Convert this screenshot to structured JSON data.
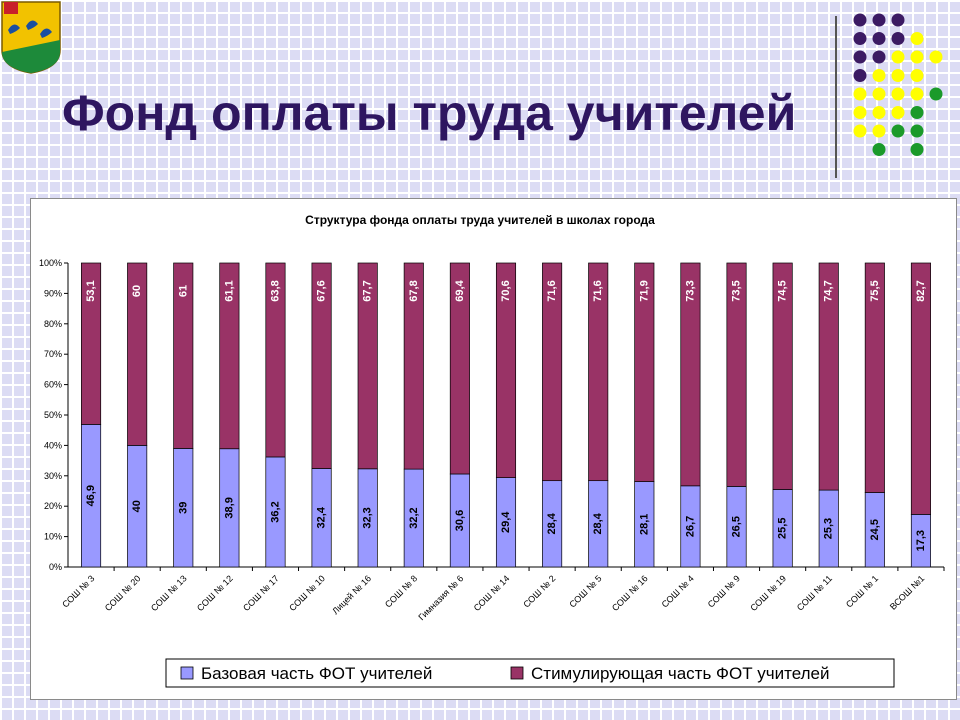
{
  "slide": {
    "title": "Фонд оплаты труда учителей",
    "emblem_icon": "city-coat-of-arms",
    "decor": "dot-grid"
  },
  "colors": {
    "title": "#2e1660",
    "base": "#9999ff",
    "stimulating": "#993366",
    "dot_purple": "#3b1a63",
    "dot_yellow": "#ffff00",
    "dot_green": "#1b9a2a"
  },
  "chart_data": {
    "type": "bar",
    "stacked": "percent",
    "title": "Структура фонда оплаты труда учителей в школах города",
    "categories": [
      "СОШ № 3",
      "СОШ № 20",
      "СОШ № 13",
      "СОШ № 12",
      "СОШ № 17",
      "СОШ № 10",
      "Лицей № 16",
      "СОШ № 8",
      "Гимназия № 6",
      "СОШ № 14",
      "СОШ № 2",
      "СОШ № 5",
      "СОШ № 16",
      "СОШ № 4",
      "СОШ № 9",
      "СОШ № 19",
      "СОШ № 11",
      "СОШ № 1",
      "ВСОШ №1"
    ],
    "series": [
      {
        "name": "Базовая часть ФОТ учителей",
        "values": [
          46.9,
          40,
          39,
          38.9,
          36.2,
          32.4,
          32.3,
          32.2,
          30.6,
          29.4,
          28.4,
          28.4,
          28.1,
          26.7,
          26.5,
          25.5,
          25.3,
          24.5,
          17.3
        ],
        "labels": [
          "46,9",
          "40",
          "39",
          "38,9",
          "36,2",
          "32,4",
          "32,3",
          "32,2",
          "30,6",
          "29,4",
          "28,4",
          "28,4",
          "28,1",
          "26,7",
          "26,5",
          "25,5",
          "25,3",
          "24,5",
          "17,3"
        ]
      },
      {
        "name": "Стимулирующая часть ФОТ учителей",
        "values": [
          53.1,
          60,
          61,
          61.1,
          63.8,
          67.6,
          67.7,
          67.8,
          69.4,
          70.6,
          71.6,
          71.6,
          71.9,
          73.3,
          73.5,
          74.5,
          74.7,
          75.5,
          82.7
        ],
        "labels": [
          "53,1",
          "60",
          "61",
          "61,1",
          "63,8",
          "67,6",
          "67,7",
          "67,8",
          "69,4",
          "70,6",
          "71,6",
          "71,6",
          "71,9",
          "73,3",
          "73,5",
          "74,5",
          "74,7",
          "75,5",
          "82,7"
        ]
      }
    ],
    "yticks": [
      "0%",
      "10%",
      "20%",
      "30%",
      "40%",
      "50%",
      "60%",
      "70%",
      "80%",
      "90%",
      "100%"
    ],
    "ylim": [
      0,
      100
    ],
    "grid": false,
    "legend": "bottom"
  }
}
